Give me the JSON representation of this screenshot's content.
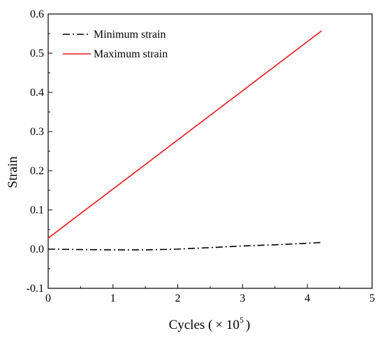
{
  "chart_data": {
    "type": "line",
    "title": "",
    "xlabel": "Cycles (",
    "xlabel_multiplier": "× 10",
    "xlabel_exponent": "5",
    "xlabel_close": ")",
    "ylabel": "Strain",
    "xlim": [
      0,
      5
    ],
    "ylim": [
      -0.1,
      0.6
    ],
    "x_ticks": [
      0,
      1,
      2,
      3,
      4,
      5
    ],
    "x_tick_labels": [
      "0",
      "1",
      "2",
      "3",
      "4",
      "5"
    ],
    "y_ticks": [
      -0.1,
      0.0,
      0.1,
      0.2,
      0.3,
      0.4,
      0.5,
      0.6
    ],
    "y_tick_labels": [
      "-0.1",
      "0.0",
      "0.1",
      "0.2",
      "0.3",
      "0.4",
      "0.5",
      "0.6"
    ],
    "grid": false,
    "legend_position": "top-left",
    "series": [
      {
        "name": "Minimum strain",
        "color": "#000000",
        "line_style": "dash-dot",
        "x": [
          0,
          0.5,
          1.0,
          1.5,
          2.0,
          2.5,
          3.0,
          3.5,
          4.0,
          4.22
        ],
        "y": [
          0.0,
          -0.001,
          -0.002,
          -0.002,
          0.0,
          0.004,
          0.008,
          0.011,
          0.015,
          0.017
        ]
      },
      {
        "name": "Maximum strain",
        "color": "#e8171c",
        "line_style": "solid",
        "x": [
          0,
          4.22
        ],
        "y": [
          0.028,
          0.557
        ]
      }
    ]
  }
}
